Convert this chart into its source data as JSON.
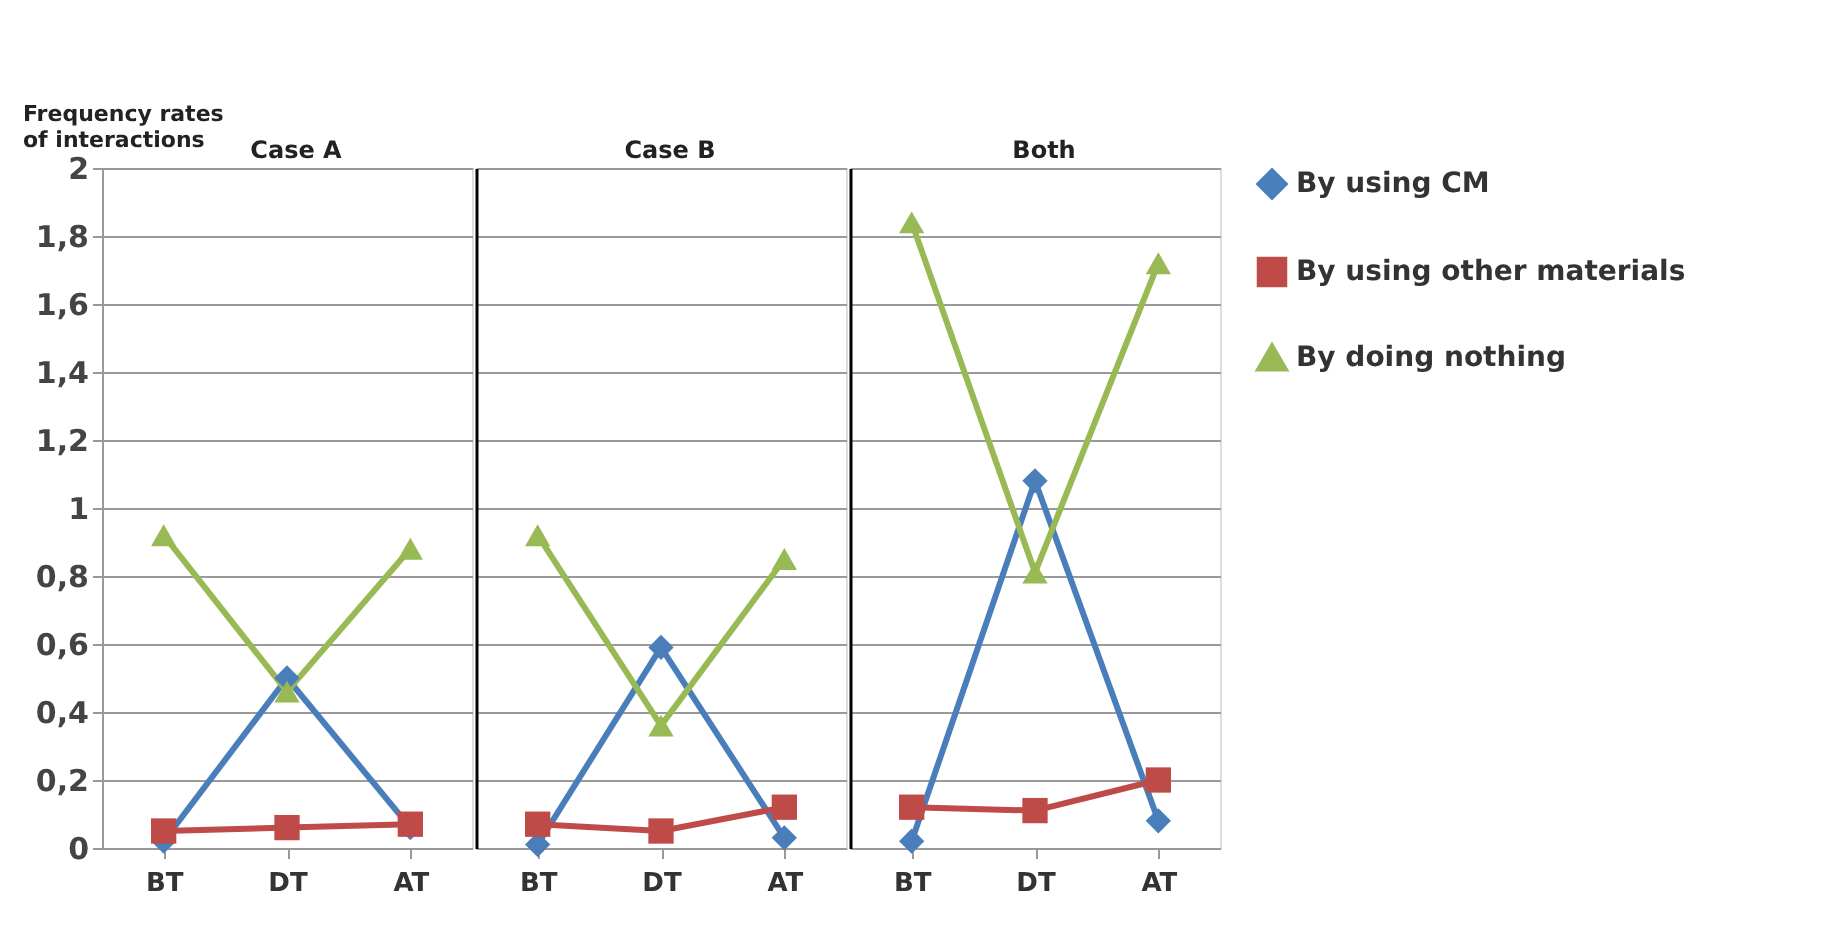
{
  "chart_data": [
    {
      "type": "line",
      "title": "Case  A",
      "ylabel": "Frequency rates of interactions",
      "categories": [
        "BT",
        "DT",
        "AT"
      ],
      "ylim": [
        0,
        2
      ],
      "yticks": [
        0,
        {
          "value": 0.2,
          "label": "0,2"
        },
        {
          "value": 0.4,
          "label": "0,4"
        },
        {
          "value": 0.6,
          "label": "0,6"
        },
        {
          "value": 0.8,
          "label": "0,8"
        },
        1,
        {
          "value": 1.2,
          "label": "1,2"
        },
        {
          "value": 1.4,
          "label": "1,4"
        },
        {
          "value": 1.6,
          "label": "1,6"
        },
        {
          "value": 1.8,
          "label": "1,8"
        },
        2
      ],
      "grid": "y",
      "series": [
        {
          "color": "#4a7ebb",
          "marker": "diamond",
          "values": [
            0.02,
            0.5,
            0.06
          ]
        },
        {
          "color": "#be4b48",
          "marker": "square",
          "values": [
            0.05,
            0.06,
            0.07
          ]
        },
        {
          "color": "#98b954",
          "marker": "triangle",
          "values": [
            0.92,
            0.46,
            0.88
          ]
        }
      ]
    },
    {
      "type": "line",
      "title": "Case  B",
      "categories": [
        "BT",
        "DT",
        "AT"
      ],
      "ylim": [
        0,
        2
      ],
      "yticks": [
        0,
        0.2,
        0.4,
        0.6,
        0.8,
        1,
        1.2,
        1.4,
        1.6,
        1.8,
        2
      ],
      "grid": "y",
      "tick_labels": "x",
      "series": [
        {
          "color": "#4a7ebb",
          "marker": "diamond",
          "values": [
            0.01,
            0.59,
            0.03
          ]
        },
        {
          "color": "#be4b48",
          "marker": "square",
          "values": [
            0.07,
            0.05,
            0.12
          ]
        },
        {
          "color": "#98b954",
          "marker": "triangle",
          "values": [
            0.92,
            0.36,
            0.85
          ]
        }
      ]
    },
    {
      "type": "line",
      "title": "Both",
      "categories": [
        "BT",
        "DT",
        "AT"
      ],
      "ylim": [
        0,
        2
      ],
      "yticks": [
        0,
        0.2,
        0.4,
        0.6,
        0.8,
        1,
        1.2,
        1.4,
        1.6,
        1.8,
        2
      ],
      "grid": "y",
      "tick_labels": "x",
      "legend": "right",
      "series": [
        {
          "name": "By using CM",
          "color": "#4a7ebb",
          "marker": "diamond",
          "values": [
            0.02,
            1.08,
            0.08
          ]
        },
        {
          "name": "By using other materials",
          "color": "#be4b48",
          "marker": "square",
          "values": [
            0.12,
            0.11,
            0.2
          ]
        },
        {
          "name": "By doing nothing",
          "color": "#98b954",
          "marker": "triangle",
          "values": [
            1.84,
            0.81,
            1.72
          ]
        }
      ]
    }
  ]
}
